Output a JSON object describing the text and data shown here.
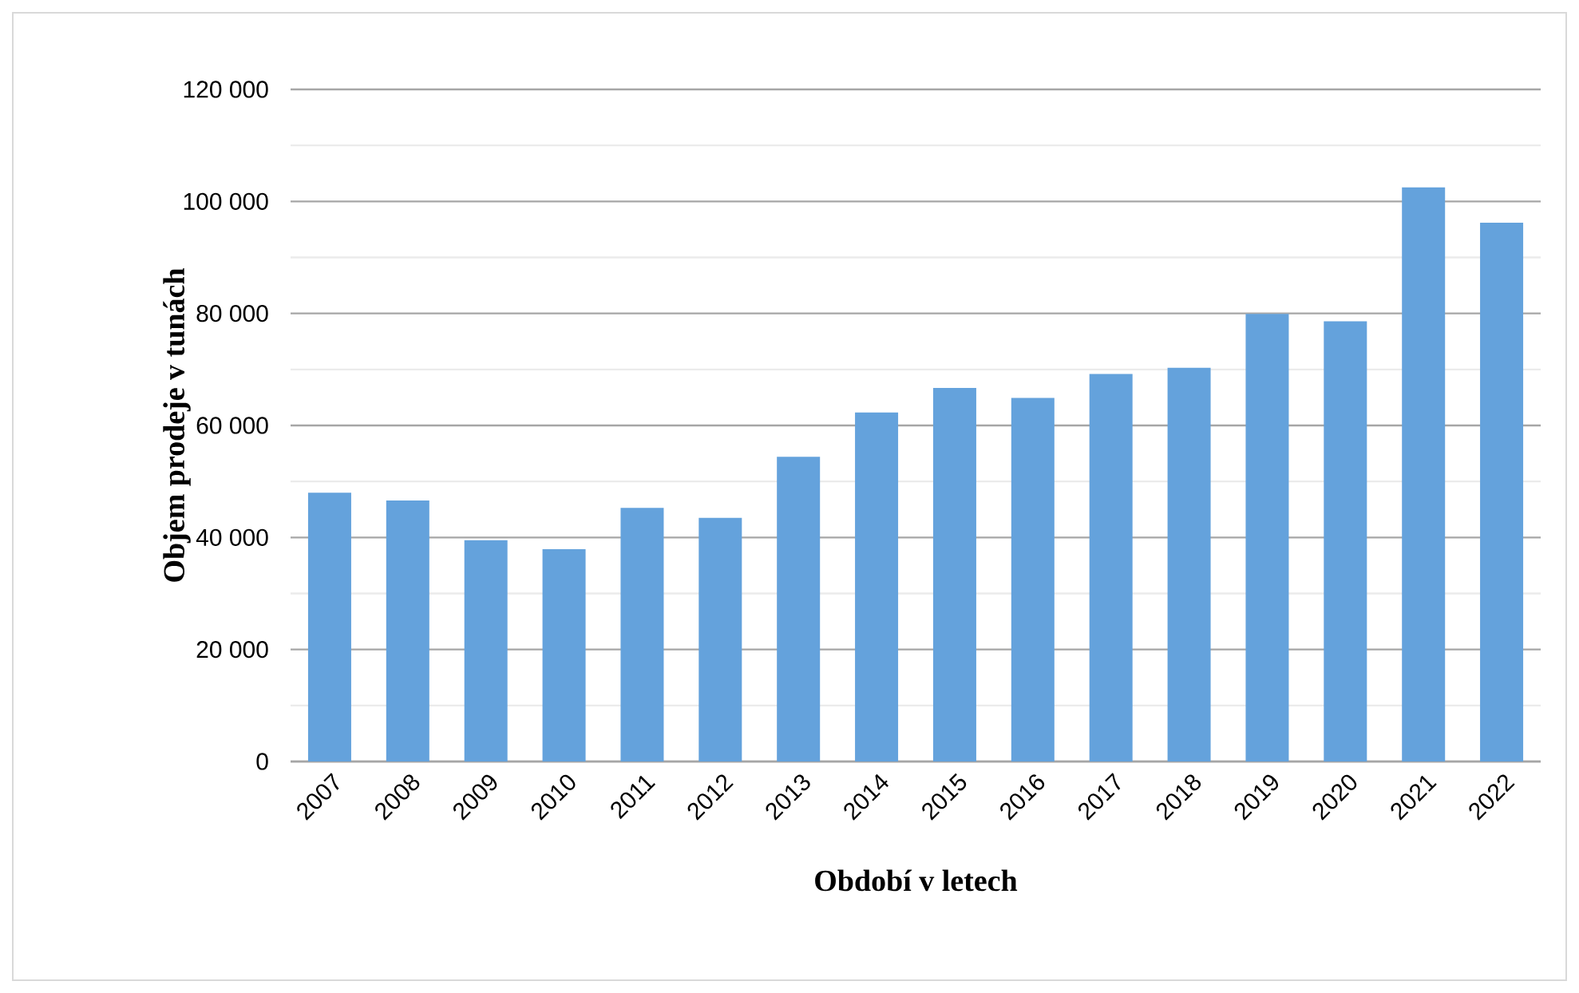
{
  "chart_data": {
    "type": "bar",
    "xlabel": "Období v letech",
    "ylabel": "Objem prodeje v tunách",
    "categories": [
      "2007",
      "2008",
      "2009",
      "2010",
      "2011",
      "2012",
      "2013",
      "2014",
      "2015",
      "2016",
      "2017",
      "2018",
      "2019",
      "2020",
      "2021",
      "2022"
    ],
    "values": [
      48000,
      46600,
      39500,
      37900,
      45300,
      43500,
      54400,
      62300,
      66700,
      64900,
      69200,
      70300,
      79900,
      78600,
      102500,
      96200
    ],
    "color": "#64a2dc",
    "ylim": [
      0,
      120000
    ],
    "yticks": [
      {
        "value": 0,
        "label": "0"
      },
      {
        "value": 10000,
        "label": null
      },
      {
        "value": 20000,
        "label": "20 000"
      },
      {
        "value": 30000,
        "label": null
      },
      {
        "value": 40000,
        "label": "40 000"
      },
      {
        "value": 50000,
        "label": null
      },
      {
        "value": 60000,
        "label": "60 000"
      },
      {
        "value": 70000,
        "label": null
      },
      {
        "value": 80000,
        "label": "80 000"
      },
      {
        "value": 90000,
        "label": null
      },
      {
        "value": 100000,
        "label": "100 000"
      },
      {
        "value": 110000,
        "label": null
      },
      {
        "value": 120000,
        "label": "120 000"
      }
    ],
    "grid": "y"
  }
}
